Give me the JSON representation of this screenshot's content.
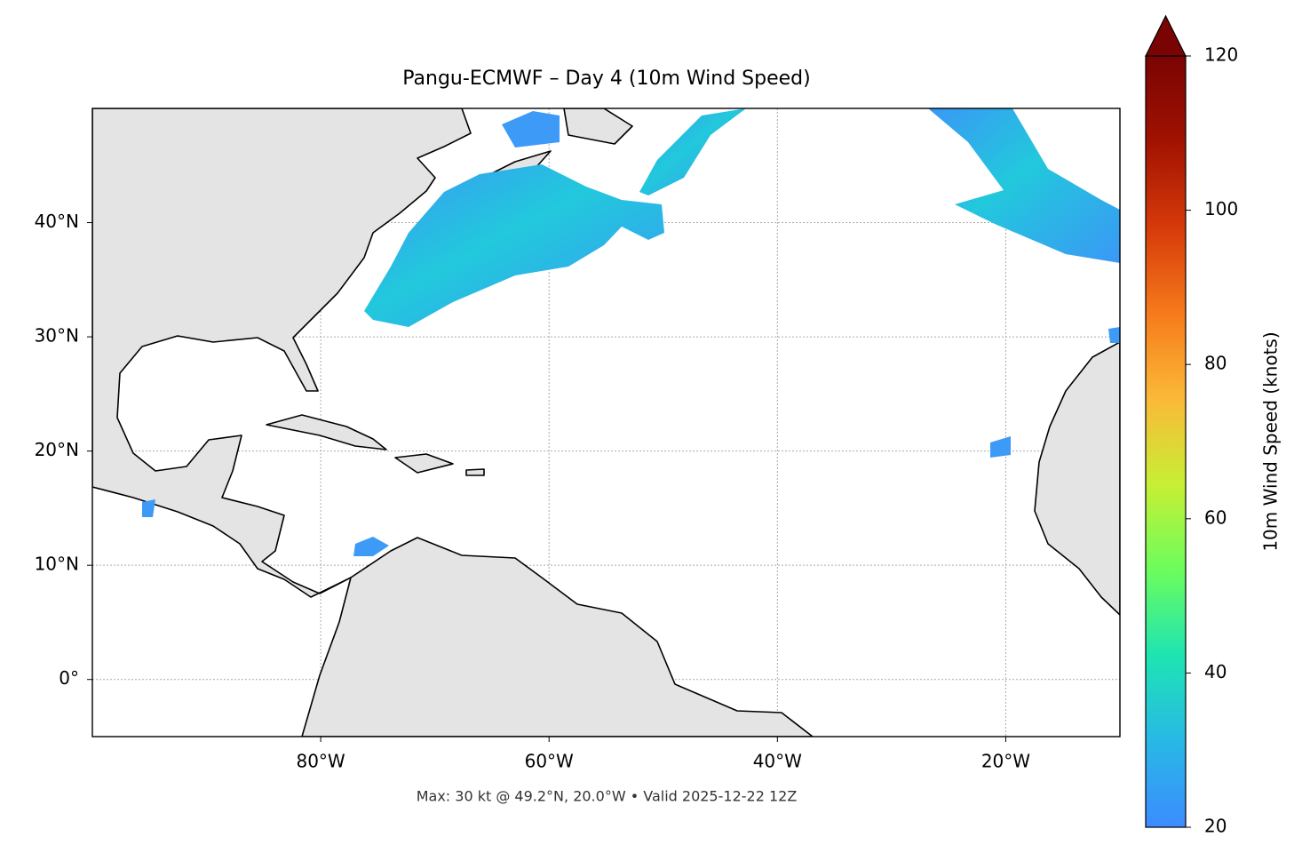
{
  "chart_data": {
    "type": "map",
    "title": "Pangu-ECMWF – Day 4 (10m Wind Speed)",
    "footnote": "Max: 30 kt @ 49.2°N, 20.0°W • Valid 2025-12-22 12Z",
    "xlim": [
      -100,
      -10
    ],
    "ylim": [
      -5,
      50
    ],
    "xticks": [
      {
        "value": -80,
        "label": "80°W"
      },
      {
        "value": -60,
        "label": "60°W"
      },
      {
        "value": -40,
        "label": "40°W"
      },
      {
        "value": -20,
        "label": "20°W"
      }
    ],
    "yticks": [
      {
        "value": 0,
        "label": "0°"
      },
      {
        "value": 10,
        "label": "10°N"
      },
      {
        "value": 20,
        "label": "20°N"
      },
      {
        "value": 30,
        "label": "30°N"
      },
      {
        "value": 40,
        "label": "40°N"
      }
    ],
    "grid": true,
    "colorbar": {
      "label": "10m Wind Speed (knots)",
      "lim": [
        20,
        120
      ],
      "ticks": [
        20,
        40,
        60,
        80,
        100,
        120
      ],
      "colormap": [
        "#3d8bff",
        "#28b8e6",
        "#1ee4b2",
        "#6cfd5c",
        "#c7ef34",
        "#fbb938",
        "#f67a1b",
        "#d63a0a",
        "#a11201",
        "#7a0403"
      ]
    }
  }
}
